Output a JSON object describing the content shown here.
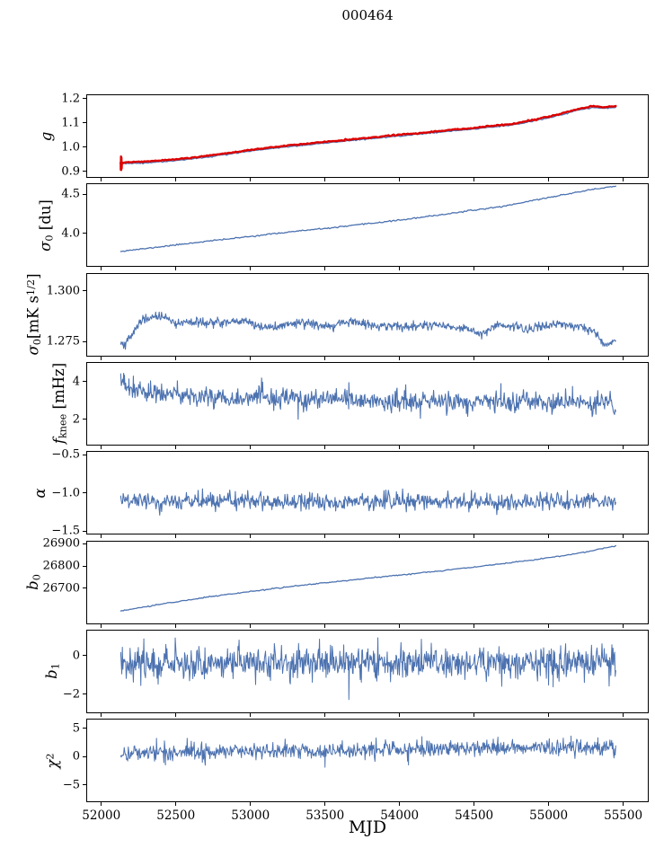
{
  "window": {
    "title": "000464"
  },
  "chart_data": {
    "type": "line",
    "title": "000464",
    "xlabel": "MJD",
    "grid": false,
    "legend": null,
    "line_color": "#4c72b0",
    "highlight_color": "#dd0000",
    "x": {
      "label": "MJD",
      "lim": [
        51905,
        55665
      ],
      "tick_values": [
        52000,
        52500,
        53000,
        53500,
        54000,
        54500,
        55000,
        55500
      ],
      "tick_labels": [
        "52000",
        "52500",
        "53000",
        "53500",
        "54000",
        "54500",
        "55000",
        "55500"
      ],
      "data_range": [
        52130,
        55450
      ]
    },
    "panels": [
      {
        "name": "g",
        "ylabel": "g",
        "label": [
          {
            "t": "g",
            "i": 1
          }
        ],
        "ylim": [
          0.877,
          1.213
        ],
        "yticks": [
          {
            "v": 1.2,
            "s": "1.2"
          },
          {
            "v": 1.1,
            "s": "1.1"
          },
          {
            "v": 1.0,
            "s": "1.0"
          },
          {
            "v": 0.9,
            "s": "0.9"
          }
        ],
        "anchors": [
          [
            52130,
            0.937
          ],
          [
            52250,
            0.9385
          ],
          [
            52400,
            0.9445
          ],
          [
            52550,
            0.9525
          ],
          [
            52700,
            0.963
          ],
          [
            52850,
            0.9755
          ],
          [
            53000,
            0.9885
          ],
          [
            53100,
            0.996
          ],
          [
            53250,
            1.006
          ],
          [
            53400,
            1.0155
          ],
          [
            53550,
            1.0245
          ],
          [
            53700,
            1.033
          ],
          [
            53850,
            1.0415
          ],
          [
            54000,
            1.0505
          ],
          [
            54150,
            1.059
          ],
          [
            54300,
            1.0675
          ],
          [
            54450,
            1.0765
          ],
          [
            54600,
            1.0855
          ],
          [
            54750,
            1.0945
          ],
          [
            54900,
            1.112
          ],
          [
            55000,
            1.125
          ],
          [
            55100,
            1.14
          ],
          [
            55200,
            1.157
          ],
          [
            55300,
            1.168
          ],
          [
            55360,
            1.164
          ],
          [
            55450,
            1.168
          ]
        ],
        "series": [
          {
            "id": "g-blue",
            "color": "#4c72b0",
            "w": 1.3,
            "n": 380,
            "noise": 0.0012,
            "seed": 3,
            "dy": -0.005
          },
          {
            "id": "g-red",
            "color": "#dd0000",
            "w": 2.4,
            "n": 380,
            "noise": 0.0012,
            "seed": 5,
            "dy": 0,
            "extra": [
              [
                52129,
                0.934
              ],
              [
                52130.5,
                0.9065
              ],
              [
                52132,
                0.961
              ],
              [
                52133.5,
                0.9055
              ],
              [
                52135,
                0.957
              ],
              [
                52136.5,
                0.912
              ],
              [
                52138,
                0.936
              ]
            ]
          }
        ]
      },
      {
        "name": "sigma0-du",
        "ylabel": "σ0 [du]",
        "label": [
          {
            "t": "σ",
            "i": 1
          },
          {
            "t": "0",
            "b": -1
          },
          {
            "t": " [du]"
          }
        ],
        "ylim": [
          3.585,
          4.625
        ],
        "yticks": [
          {
            "v": 4.5,
            "s": "4.5"
          },
          {
            "v": 4.0,
            "s": "4.0"
          }
        ],
        "anchors": [
          [
            52130,
            3.772
          ],
          [
            52300,
            3.806
          ],
          [
            52500,
            3.852
          ],
          [
            52700,
            3.897
          ],
          [
            52900,
            3.938
          ],
          [
            53100,
            3.982
          ],
          [
            53300,
            4.025
          ],
          [
            53500,
            4.06
          ],
          [
            53700,
            4.102
          ],
          [
            53900,
            4.146
          ],
          [
            54100,
            4.19
          ],
          [
            54300,
            4.242
          ],
          [
            54500,
            4.294
          ],
          [
            54700,
            4.345
          ],
          [
            54900,
            4.42
          ],
          [
            55100,
            4.49
          ],
          [
            55250,
            4.545
          ],
          [
            55450,
            4.6
          ]
        ],
        "series": [
          {
            "id": "sigma0-du-line",
            "color": "#4c72b0",
            "w": 1.3,
            "n": 380,
            "noise": 0.004,
            "seed": 11,
            "dy": 0
          }
        ]
      },
      {
        "name": "sigma0-mk",
        "ylabel": "σ0[mK s1/2]",
        "label": [
          {
            "t": "σ",
            "i": 1
          },
          {
            "t": "0",
            "b": -1
          },
          {
            "t": "[mK s"
          },
          {
            "t": "1/2",
            "b": 1
          },
          {
            "t": "]"
          }
        ],
        "ylim": [
          1.2683,
          1.3085
        ],
        "yticks": [
          {
            "v": 1.3,
            "s": "1.300"
          },
          {
            "v": 1.275,
            "s": "1.275"
          }
        ],
        "anchors": [
          [
            52130,
            1.2752
          ],
          [
            52160,
            1.2738
          ],
          [
            52200,
            1.2782
          ],
          [
            52260,
            1.2853
          ],
          [
            52320,
            1.2868
          ],
          [
            52400,
            1.2878
          ],
          [
            52450,
            1.2862
          ],
          [
            52520,
            1.2834
          ],
          [
            52600,
            1.2851
          ],
          [
            52700,
            1.2838
          ],
          [
            52800,
            1.2846
          ],
          [
            52900,
            1.2854
          ],
          [
            53000,
            1.2852
          ],
          [
            53080,
            1.2824
          ],
          [
            53150,
            1.282
          ],
          [
            53250,
            1.2841
          ],
          [
            53350,
            1.2849
          ],
          [
            53450,
            1.2832
          ],
          [
            53550,
            1.2826
          ],
          [
            53650,
            1.2848
          ],
          [
            53750,
            1.2844
          ],
          [
            53850,
            1.2827
          ],
          [
            53950,
            1.2828
          ],
          [
            54050,
            1.2821
          ],
          [
            54150,
            1.2833
          ],
          [
            54250,
            1.284
          ],
          [
            54350,
            1.2828
          ],
          [
            54450,
            1.2818
          ],
          [
            54550,
            1.2785
          ],
          [
            54650,
            1.2832
          ],
          [
            54750,
            1.2836
          ],
          [
            54850,
            1.2811
          ],
          [
            54950,
            1.2826
          ],
          [
            55050,
            1.2836
          ],
          [
            55150,
            1.2834
          ],
          [
            55250,
            1.2822
          ],
          [
            55320,
            1.2792
          ],
          [
            55370,
            1.274
          ],
          [
            55410,
            1.2738
          ],
          [
            55450,
            1.276
          ]
        ],
        "series": [
          {
            "id": "sigma0-mk-line",
            "color": "#4c72b0",
            "w": 1.1,
            "n": 850,
            "noise": 0.00115,
            "seed": 19,
            "dy": 0
          }
        ]
      },
      {
        "name": "fknee",
        "ylabel": "fknee [mHz]",
        "label": [
          {
            "t": "f",
            "i": 1
          },
          {
            "t": "knee",
            "b": -1
          },
          {
            "t": " [mHz]"
          }
        ],
        "ylim": [
          0.65,
          5.0
        ],
        "yticks": [
          {
            "v": 4,
            "s": "4"
          },
          {
            "v": 2,
            "s": "2"
          }
        ],
        "anchors": [
          [
            52130,
            3.9
          ],
          [
            52170,
            3.7
          ],
          [
            52230,
            3.5
          ],
          [
            52300,
            3.38
          ],
          [
            52400,
            3.32
          ],
          [
            52550,
            3.28
          ],
          [
            52700,
            3.22
          ],
          [
            52900,
            3.16
          ],
          [
            53100,
            3.12
          ],
          [
            53300,
            3.06
          ],
          [
            53500,
            3.02
          ],
          [
            53700,
            2.99
          ],
          [
            53900,
            2.96
          ],
          [
            54100,
            2.94
          ],
          [
            54300,
            2.92
          ],
          [
            54500,
            2.9
          ],
          [
            54700,
            2.9
          ],
          [
            54900,
            2.88
          ],
          [
            55100,
            2.88
          ],
          [
            55300,
            2.86
          ],
          [
            55450,
            2.85
          ]
        ],
        "series": [
          {
            "id": "fknee-line",
            "color": "#4c72b0",
            "w": 1.1,
            "n": 800,
            "noise": 0.26,
            "seed": 23,
            "dy": 0,
            "extra": [
              [
                52150,
                4.45
              ],
              [
                52185,
                4.15
              ],
              [
                52215,
                4.3
              ],
              [
                52260,
                4.0
              ],
              [
                52330,
                4.05
              ],
              [
                52510,
                4.05
              ],
              [
                53075,
                4.2
              ],
              [
                53320,
                2.0
              ],
              [
                53660,
                3.95
              ],
              [
                54140,
                2.05
              ],
              [
                54680,
                3.9
              ],
              [
                55160,
                3.75
              ]
            ]
          }
        ]
      },
      {
        "name": "alpha",
        "ylabel": "α",
        "label": [
          {
            "t": "α",
            "i": 1
          }
        ],
        "ylim": [
          -1.535,
          -0.465
        ],
        "yticks": [
          {
            "v": -0.5,
            "s": "−0.5"
          },
          {
            "v": -1.0,
            "s": "−1.0"
          },
          {
            "v": -1.5,
            "s": "−1.5"
          }
        ],
        "anchors": [
          [
            52130,
            -1.1
          ],
          [
            52500,
            -1.115
          ],
          [
            53000,
            -1.105
          ],
          [
            53500,
            -1.115
          ],
          [
            54000,
            -1.11
          ],
          [
            54500,
            -1.12
          ],
          [
            55000,
            -1.115
          ],
          [
            55450,
            -1.12
          ]
        ],
        "series": [
          {
            "id": "alpha-line",
            "color": "#4c72b0",
            "w": 1.1,
            "n": 800,
            "noise": 0.055,
            "seed": 29,
            "dy": 0
          }
        ]
      },
      {
        "name": "b0",
        "ylabel": "b0",
        "label": [
          {
            "t": "b",
            "i": 1
          },
          {
            "t": "0",
            "b": -1
          }
        ],
        "ylim": [
          26542,
          26912
        ],
        "yticks": [
          {
            "v": 26900,
            "s": "26900"
          },
          {
            "v": 26800,
            "s": "26800"
          },
          {
            "v": 26700,
            "s": "26700"
          }
        ],
        "anchors": [
          [
            52130,
            26598
          ],
          [
            52300,
            26618
          ],
          [
            52500,
            26640
          ],
          [
            52700,
            26660
          ],
          [
            52900,
            26678
          ],
          [
            53100,
            26695
          ],
          [
            53300,
            26711
          ],
          [
            53500,
            26726
          ],
          [
            53700,
            26740
          ],
          [
            53900,
            26754
          ],
          [
            54100,
            26768
          ],
          [
            54300,
            26782
          ],
          [
            54500,
            26797
          ],
          [
            54700,
            26813
          ],
          [
            54900,
            26830
          ],
          [
            55100,
            26849
          ],
          [
            55250,
            26866
          ],
          [
            55350,
            26880
          ],
          [
            55450,
            26893
          ]
        ],
        "series": [
          {
            "id": "b0-line",
            "color": "#4c72b0",
            "w": 1.3,
            "n": 380,
            "noise": 1.2,
            "seed": 31,
            "dy": 0
          }
        ]
      },
      {
        "name": "b1",
        "ylabel": "b1",
        "label": [
          {
            "t": "b",
            "i": 1
          },
          {
            "t": "1",
            "b": -1
          }
        ],
        "ylim": [
          -2.95,
          1.32
        ],
        "yticks": [
          {
            "v": 0,
            "s": "0"
          },
          {
            "v": -2,
            "s": "−2"
          }
        ],
        "anchors": [
          [
            52130,
            -0.3
          ],
          [
            52600,
            -0.38
          ],
          [
            53100,
            -0.33
          ],
          [
            53600,
            -0.36
          ],
          [
            54100,
            -0.32
          ],
          [
            54600,
            -0.38
          ],
          [
            55100,
            -0.33
          ],
          [
            55450,
            -0.35
          ]
        ],
        "series": [
          {
            "id": "b1-line",
            "color": "#4c72b0",
            "w": 1.0,
            "n": 900,
            "noise": 0.42,
            "seed": 37,
            "dy": 0,
            "extra": [
              [
                52265,
                -1.55
              ],
              [
                53660,
                -2.28
              ],
              [
                55030,
                -1.62
              ]
            ]
          }
        ]
      },
      {
        "name": "chi2",
        "ylabel": "χ2",
        "label": [
          {
            "t": "χ",
            "i": 1
          },
          {
            "t": "2",
            "b": 1
          }
        ],
        "ylim": [
          -7.9,
          6.5
        ],
        "yticks": [
          {
            "v": 5,
            "s": "5"
          },
          {
            "v": 0,
            "s": "0"
          },
          {
            "v": -5,
            "s": "−5"
          }
        ],
        "anchors": [
          [
            52130,
            0.55
          ],
          [
            52500,
            0.8
          ],
          [
            52900,
            0.95
          ],
          [
            53300,
            1.0
          ],
          [
            53700,
            1.1
          ],
          [
            54100,
            1.25
          ],
          [
            54500,
            1.45
          ],
          [
            54800,
            1.65
          ],
          [
            55000,
            1.5
          ],
          [
            55200,
            1.6
          ],
          [
            55450,
            1.75
          ]
        ],
        "series": [
          {
            "id": "chi2-line",
            "color": "#4c72b0",
            "w": 1.0,
            "n": 850,
            "noise": 0.72,
            "seed": 41,
            "dy": 0,
            "extra": [
              [
                52370,
                3.2
              ],
              [
                52430,
                -1.5
              ],
              [
                53500,
                -1.9
              ],
              [
                54060,
                -1.5
              ],
              [
                54150,
                3.5
              ],
              [
                54660,
                3.4
              ],
              [
                55150,
                3.6
              ],
              [
                55330,
                3.3
              ]
            ]
          }
        ]
      }
    ]
  }
}
